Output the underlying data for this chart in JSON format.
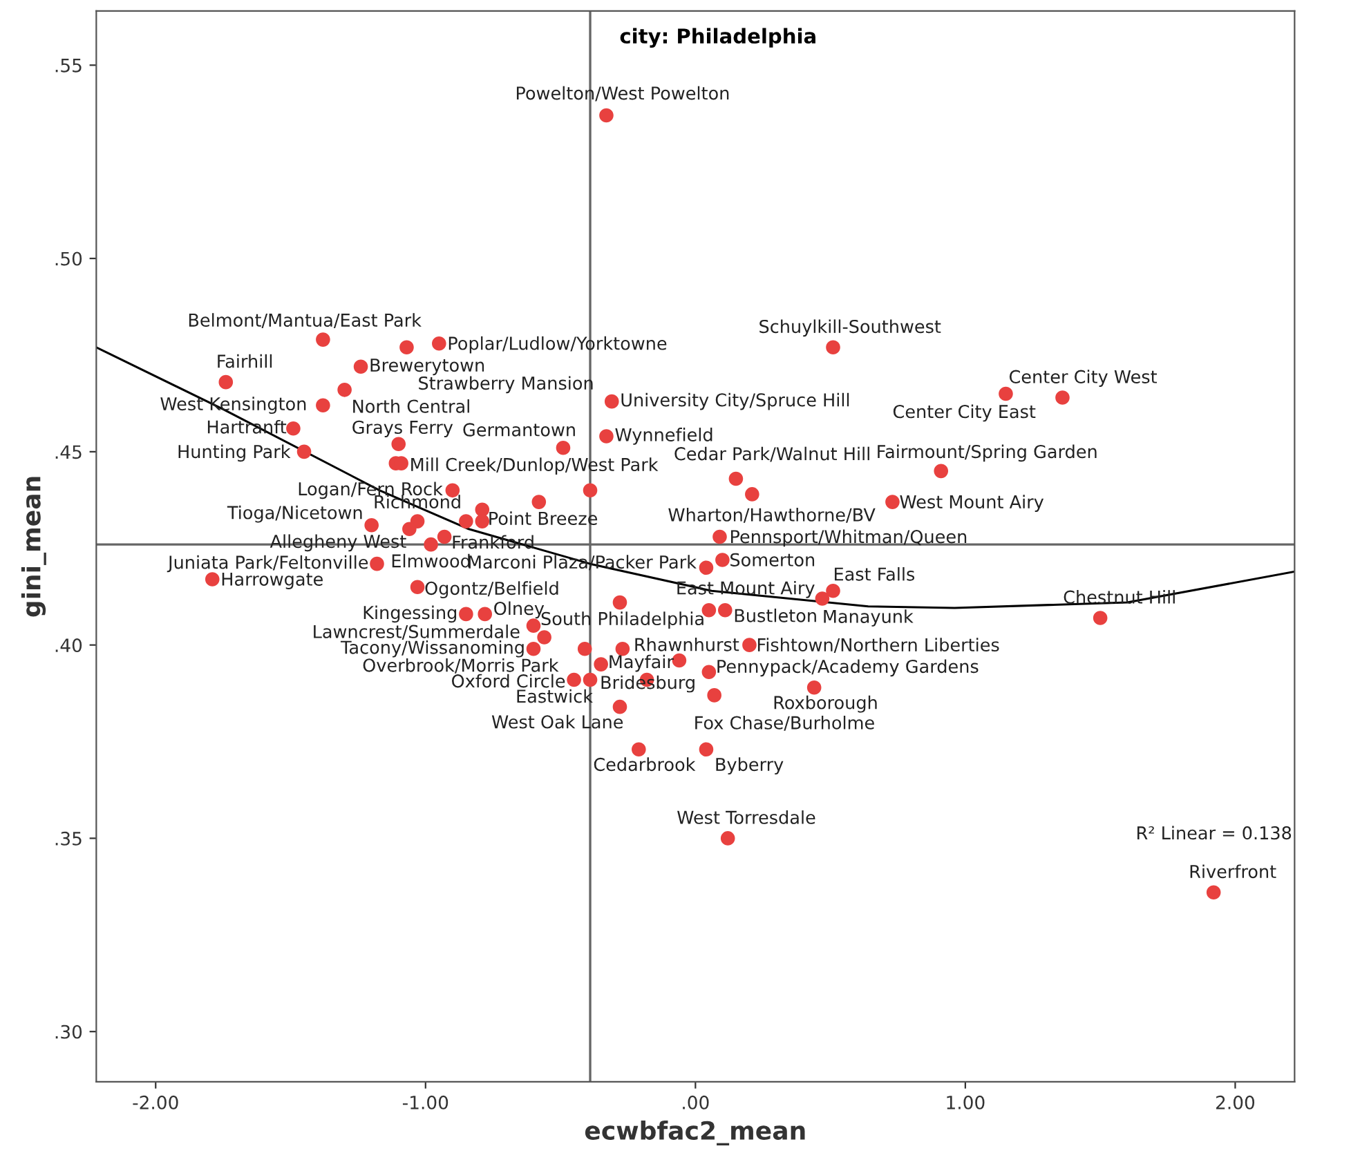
{
  "chart_data": {
    "type": "scatter",
    "title": "city: Philadelphia",
    "xlabel": "ecwbfac2_mean",
    "ylabel": "gini_mean",
    "xlim": [
      -2.22,
      2.22
    ],
    "ylim": [
      0.287,
      0.564
    ],
    "xticks": [
      {
        "value": -2,
        "label": "-2.00"
      },
      {
        "value": -1,
        "label": "-1.00"
      },
      {
        "value": 0,
        "label": ".00"
      },
      {
        "value": 1,
        "label": "1.00"
      },
      {
        "value": 2,
        "label": "2.00"
      }
    ],
    "yticks": [
      {
        "value": 0.3,
        "label": ".30"
      },
      {
        "value": 0.35,
        "label": ".35"
      },
      {
        "value": 0.4,
        "label": ".40"
      },
      {
        "value": 0.45,
        "label": ".45"
      },
      {
        "value": 0.5,
        "label": ".50"
      },
      {
        "value": 0.55,
        "label": ".55"
      }
    ],
    "grid": false,
    "legend": false,
    "marker": "circle",
    "ref_lines": [
      {
        "axis": "x",
        "value": -0.39,
        "color": "#666666"
      },
      {
        "axis": "y",
        "value": 0.426,
        "color": "#666666"
      }
    ],
    "annotations": [
      "R² Linear = 0.138"
    ],
    "series": [
      {
        "type": "scatter",
        "color": "#e8413f",
        "x": [
          -0.33,
          -1.38,
          -1.07,
          -0.95,
          -1.24,
          -1.74,
          -1.3,
          -1.38,
          -1.49,
          -1.45,
          -1.1,
          -1.11,
          -1.09,
          -0.49,
          -0.33,
          -0.31,
          0.51,
          1.36,
          1.15,
          0.91,
          0.15,
          0.21,
          0.73,
          -0.9,
          -0.39,
          -0.58,
          -0.79,
          -0.85,
          -0.79,
          -1.03,
          -1.06,
          -1.2,
          -0.93,
          -0.98,
          -1.18,
          0.09,
          0.1,
          0.04,
          -1.79,
          -1.03,
          0.51,
          0.47,
          0.05,
          0.11,
          -0.28,
          -0.85,
          -0.78,
          -0.6,
          -0.56,
          -0.6,
          -0.41,
          -0.27,
          -0.35,
          -0.06,
          0.2,
          0.05,
          -0.45,
          -0.39,
          -0.18,
          0.07,
          0.44,
          -0.28,
          -0.21,
          0.04,
          0.12,
          1.5,
          1.92
        ],
        "values": [
          0.537,
          0.479,
          0.477,
          0.478,
          0.472,
          0.468,
          0.466,
          0.462,
          0.456,
          0.45,
          0.452,
          0.447,
          0.447,
          0.451,
          0.454,
          0.463,
          0.477,
          0.464,
          0.465,
          0.445,
          0.443,
          0.439,
          0.437,
          0.44,
          0.44,
          0.437,
          0.435,
          0.432,
          0.432,
          0.432,
          0.43,
          0.431,
          0.428,
          0.426,
          0.421,
          0.428,
          0.422,
          0.42,
          0.417,
          0.415,
          0.414,
          0.412,
          0.409,
          0.409,
          0.411,
          0.408,
          0.408,
          0.405,
          0.402,
          0.399,
          0.399,
          0.399,
          0.395,
          0.396,
          0.4,
          0.393,
          0.391,
          0.391,
          0.391,
          0.387,
          0.389,
          0.384,
          0.373,
          0.373,
          0.35,
          0.407,
          0.336
        ],
        "value_labels": [
          "Powelton/West Powelton",
          "Belmont/Mantua/East Park",
          "Strawberry Mansion",
          "Poplar/Ludlow/Yorktowne",
          "Brewerytown",
          "Fairhill",
          "North Central",
          "West Kensington",
          "Hartranft",
          "Hunting Park",
          "Grays Ferry",
          null,
          "Mill Creek/Dunlop/West Park",
          "Germantown",
          "Wynnefield",
          "University City/Spruce Hill",
          "Schuylkill-Southwest",
          "Center City West",
          "Center City East",
          "Fairmount/Spring Garden",
          "Cedar Park/Walnut Hill",
          "Wharton/Hawthorne/BV",
          "West Mount Airy",
          "Logan/Fern Rock",
          null,
          null,
          null,
          null,
          "Point Breeze",
          "Richmond",
          "Allegheny West",
          "Tioga/Nicetown",
          "Frankford",
          "Elmwood",
          "Juniata Park/Feltonville",
          "Pennsport/Whitman/Queen",
          "Somerton",
          "Marconi Plaza/Packer Park",
          "Harrowgate",
          "Ogontz/Belfield",
          "East Falls",
          "Manayunk",
          "East Mount Airy",
          "Bustleton",
          null,
          "Kingessing",
          "Olney",
          "South Philadelphia",
          "Lawncrest/Summerdale",
          "Tacony/Wissanoming",
          "Overbrook/Morris Park",
          "Rhawnhurst",
          null,
          "Mayfair",
          "Fishtown/Northern Liberties",
          "Pennypack/Academy Gardens",
          "Oxford Circle",
          "Eastwick",
          "Bridesburg",
          "Fox Chase/Burholme",
          "Roxborough",
          "West Oak Lane",
          "Cedarbrook",
          "Byberry",
          "West Torresdale",
          "Chestnut Hill",
          "Riverfront"
        ]
      },
      {
        "type": "line",
        "color": "#000000",
        "marker": "none",
        "x": [
          -2.22,
          -1.75,
          -1.17,
          -0.84,
          -0.39,
          0.06,
          0.64,
          0.96,
          1.6,
          2.22
        ],
        "values": [
          0.477,
          0.461,
          0.44,
          0.43,
          0.421,
          0.414,
          0.41,
          0.4096,
          0.411,
          0.419
        ]
      }
    ]
  }
}
